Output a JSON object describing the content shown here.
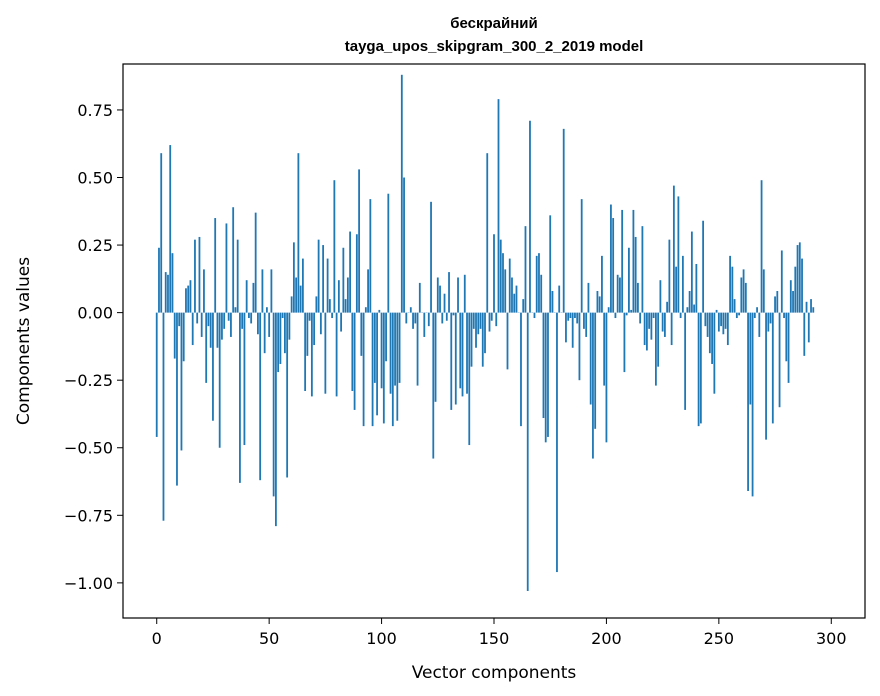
{
  "chart_data": {
    "type": "bar",
    "title": "бескрайний",
    "subtitle": "tayga_upos_skipgram_300_2_2019 model",
    "xlabel": "Vector components",
    "ylabel": "Components values",
    "xlim": [
      -15,
      315
    ],
    "ylim": [
      -1.13,
      0.92
    ],
    "xticks": [
      0,
      50,
      100,
      150,
      200,
      250,
      300
    ],
    "yticks": [
      -1.0,
      -0.75,
      -0.5,
      -0.25,
      0.0,
      0.25,
      0.5,
      0.75
    ],
    "ytick_labels": [
      "−1.00",
      "−0.75",
      "−0.50",
      "−0.25",
      "0.00",
      "0.25",
      "0.50",
      "0.75"
    ],
    "grid": false,
    "bar_color": "#1f77b4",
    "values": [
      -0.46,
      0.24,
      0.59,
      -0.77,
      0.15,
      0.14,
      0.62,
      0.22,
      -0.17,
      -0.64,
      -0.05,
      -0.51,
      -0.18,
      0.09,
      0.1,
      0.12,
      -0.12,
      0.27,
      -0.04,
      0.28,
      -0.09,
      0.16,
      -0.26,
      -0.05,
      -0.13,
      -0.4,
      0.35,
      -0.13,
      -0.5,
      -0.1,
      -0.06,
      0.33,
      -0.03,
      -0.09,
      0.39,
      0.02,
      0.27,
      -0.63,
      -0.06,
      -0.49,
      0.12,
      -0.02,
      -0.04,
      0.11,
      0.37,
      -0.08,
      -0.62,
      0.16,
      -0.15,
      0.02,
      -0.09,
      0.16,
      -0.68,
      -0.79,
      -0.22,
      -0.19,
      -0.02,
      -0.15,
      -0.61,
      -0.1,
      0.06,
      0.26,
      0.13,
      0.59,
      0.1,
      0.2,
      -0.29,
      -0.16,
      -0.03,
      -0.31,
      -0.12,
      0.06,
      0.27,
      -0.08,
      0.25,
      -0.3,
      0.2,
      0.05,
      -0.02,
      0.49,
      -0.31,
      0.12,
      -0.07,
      0.24,
      0.05,
      0.13,
      0.3,
      -0.29,
      -0.36,
      0.29,
      0.53,
      -0.16,
      -0.42,
      0.02,
      0.16,
      0.42,
      -0.42,
      -0.26,
      -0.38,
      0.01,
      -0.28,
      -0.41,
      -0.18,
      0.44,
      -0.3,
      -0.42,
      -0.27,
      -0.4,
      -0.26,
      0.88,
      0.5,
      -0.04,
      0.0,
      0.02,
      -0.06,
      -0.04,
      -0.27,
      0.11,
      0.0,
      -0.09,
      0.0,
      -0.05,
      0.41,
      -0.54,
      -0.33,
      0.13,
      0.1,
      -0.04,
      0.07,
      -0.03,
      0.15,
      -0.36,
      -0.01,
      -0.34,
      0.13,
      -0.28,
      -0.31,
      0.14,
      -0.3,
      -0.49,
      -0.2,
      -0.06,
      -0.13,
      -0.08,
      -0.06,
      -0.2,
      -0.15,
      0.59,
      -0.07,
      -0.03,
      0.29,
      -0.05,
      0.79,
      0.27,
      0.22,
      0.16,
      -0.21,
      0.2,
      0.13,
      0.07,
      0.1,
      0.0,
      -0.42,
      0.05,
      0.32,
      -1.03,
      0.71,
      0.0,
      -0.02,
      0.21,
      0.22,
      0.14,
      -0.39,
      -0.48,
      -0.46,
      0.36,
      0.08,
      0.0,
      -0.96,
      0.1,
      0.0,
      0.68,
      -0.11,
      -0.03,
      -0.02,
      -0.13,
      -0.02,
      -0.04,
      -0.25,
      0.42,
      -0.06,
      -0.09,
      0.11,
      -0.34,
      -0.54,
      -0.43,
      0.08,
      0.06,
      0.21,
      -0.27,
      -0.48,
      0.02,
      0.4,
      0.35,
      -0.02,
      0.14,
      0.13,
      0.38,
      -0.22,
      -0.01,
      0.24,
      0.01,
      0.38,
      0.28,
      0.11,
      -0.04,
      0.32,
      -0.12,
      -0.14,
      -0.06,
      -0.1,
      -0.02,
      -0.27,
      -0.2,
      0.12,
      -0.07,
      -0.09,
      0.04,
      0.27,
      -0.12,
      0.47,
      0.17,
      0.43,
      -0.02,
      0.21,
      -0.36,
      0.02,
      0.08,
      0.3,
      0.03,
      0.18,
      -0.42,
      -0.41,
      0.34,
      -0.05,
      -0.09,
      -0.15,
      -0.19,
      -0.3,
      0.01,
      -0.07,
      -0.05,
      -0.08,
      -0.06,
      -0.12,
      0.21,
      0.17,
      0.05,
      -0.02,
      -0.01,
      0.13,
      0.16,
      0.11,
      -0.66,
      -0.34,
      -0.68,
      -0.02,
      0.02,
      -0.09,
      0.49,
      0.16,
      -0.47,
      -0.07,
      -0.04,
      -0.41,
      0.06,
      0.08,
      -0.35,
      0.23,
      -0.02,
      -0.18,
      -0.26,
      0.12,
      0.08,
      0.17,
      0.25,
      0.26,
      0.2,
      -0.16,
      0.04,
      -0.11,
      0.05,
      0.02
    ]
  }
}
